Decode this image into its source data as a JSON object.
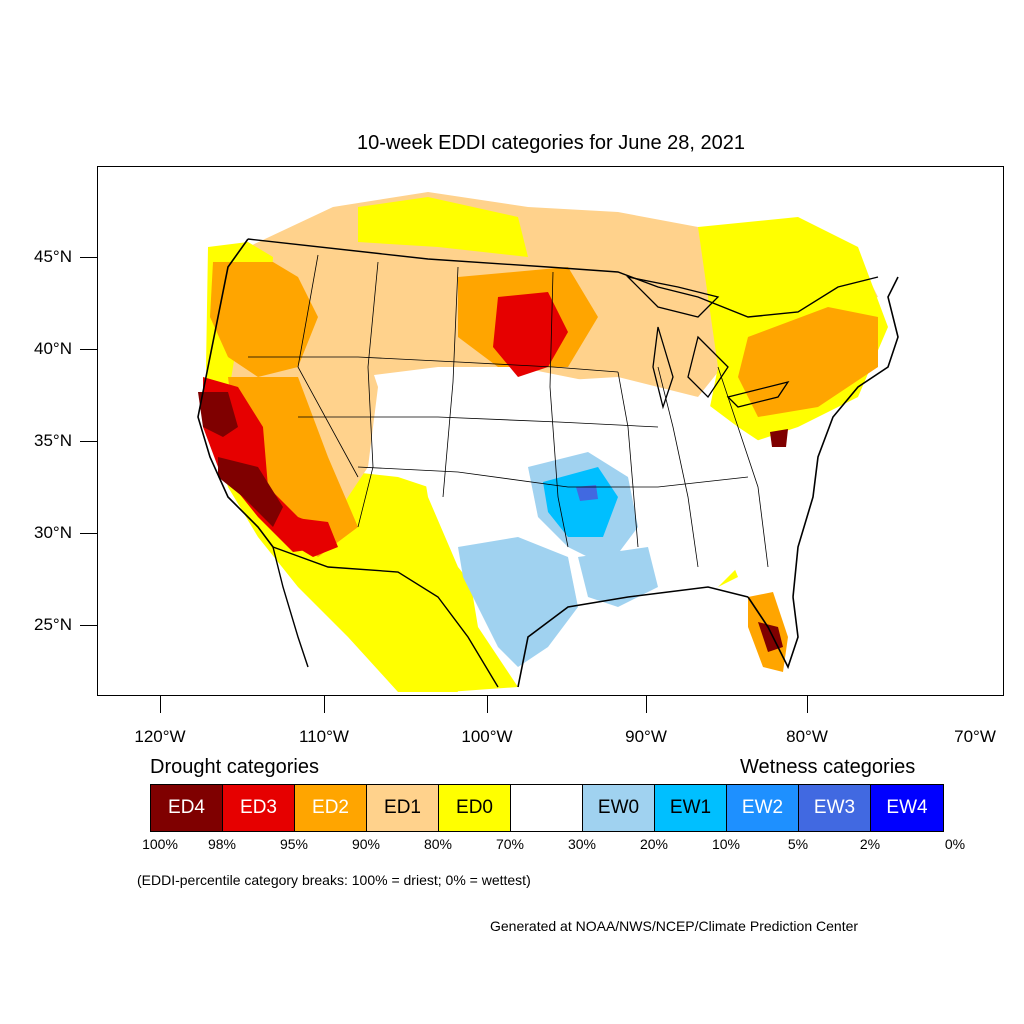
{
  "title": "10-week EDDI categories for June 28, 2021",
  "lat_labels": [
    "45°N",
    "40°N",
    "35°N",
    "30°N",
    "25°N"
  ],
  "lon_labels": [
    "120°W",
    "110°W",
    "100°W",
    "90°W",
    "80°W",
    "70°W"
  ],
  "drought_heading": "Drought categories",
  "wetness_heading": "Wetness categories",
  "legend": [
    {
      "label": "ED4",
      "color": "#7f0000",
      "text_color": "#ffffff"
    },
    {
      "label": "ED3",
      "color": "#e60000",
      "text_color": "#ffffff"
    },
    {
      "label": "ED2",
      "color": "#ffa500",
      "text_color": "#ffffff"
    },
    {
      "label": "ED1",
      "color": "#ffd28c",
      "text_color": "#000000"
    },
    {
      "label": "ED0",
      "color": "#ffff00",
      "text_color": "#000000"
    },
    {
      "label": "",
      "color": "#ffffff",
      "text_color": "#000000"
    },
    {
      "label": "EW0",
      "color": "#a0d2f0",
      "text_color": "#000000"
    },
    {
      "label": "EW1",
      "color": "#00bfff",
      "text_color": "#000000"
    },
    {
      "label": "EW2",
      "color": "#1e90ff",
      "text_color": "#ffffff"
    },
    {
      "label": "EW3",
      "color": "#4169e1",
      "text_color": "#ffffff"
    },
    {
      "label": "EW4",
      "color": "#0000ff",
      "text_color": "#ffffff"
    }
  ],
  "percent_breaks": [
    "100%",
    "98%",
    "95%",
    "90%",
    "80%",
    "70%",
    "30%",
    "20%",
    "10%",
    "5%",
    "2%",
    "0%"
  ],
  "note": "(EDDI-percentile category breaks: 100% = driest; 0% = wettest)",
  "credit": "Generated at NOAA/NWS/NCEP/Climate Prediction Center"
}
